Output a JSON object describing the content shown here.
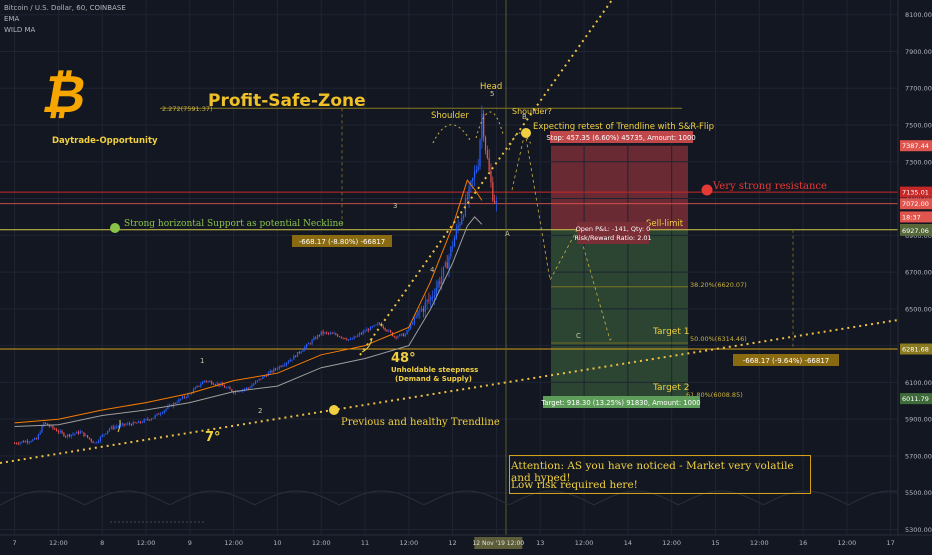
{
  "header": {
    "symbol_line": "Bitcoin / U.S. Dollar, 60, COINBASE",
    "indicator_1": "EMA",
    "indicator_2": "WILD MA"
  },
  "colors": {
    "background": "#131722",
    "candle_up": "#2962ff",
    "candle_down": "#ef5350",
    "annotation": "#f0d040",
    "stop_zone": "#7a2e36",
    "target_zone": "#2f4a34",
    "resistance": "#e53935",
    "support": "#8bc34a"
  },
  "icons": [
    "bitcoin-logo-icon"
  ],
  "chart_data": {
    "type": "candlestick",
    "symbol": "Bitcoin / U.S. Dollar, 60, COINBASE",
    "ylim": [
      5270,
      8180
    ],
    "y_ticks": [
      8100,
      7900,
      7700,
      7500,
      7300,
      7100,
      6900,
      6700,
      6500,
      6300,
      6100,
      5900,
      5700,
      5500,
      5300
    ],
    "y_tick_labels": [
      "8100.00",
      "7900.00",
      "7700.00",
      "7500.00",
      "7300.00",
      "7100.00",
      "6900.00",
      "6700.00",
      "6500.00",
      "6300.00",
      "6100.00",
      "5900.00",
      "5700.00",
      "5500.00",
      "5300.00"
    ],
    "x_tick_labels": [
      "7",
      "12:00",
      "8",
      "12:00",
      "9",
      "12:00",
      "10",
      "12:00",
      "11",
      "12:00",
      "12",
      "12:00",
      "13",
      "12:00",
      "14",
      "12:00",
      "15",
      "12:00",
      "16",
      "12:00",
      "17"
    ],
    "x_tick_slots": [
      0,
      12,
      24,
      36,
      48,
      60,
      72,
      84,
      96,
      108,
      120,
      132,
      144,
      156,
      168,
      180,
      192,
      204,
      216,
      228,
      240
    ],
    "slot_range": [
      -4,
      242
    ],
    "x_highlight_label": "12 Nov '19  12:00",
    "price_labels": [
      {
        "value": 7387.44,
        "text": "7387.44",
        "color": "#e0564f"
      },
      {
        "value": 7135.01,
        "text": "7135.01",
        "color": "#c62828"
      },
      {
        "value": 7072.0,
        "text": "7072.00",
        "color": "#e0564f"
      },
      {
        "value": 7000,
        "text": "18:37",
        "color": "#e0564f"
      },
      {
        "value": 6930.09,
        "text": "6930.09",
        "color": "#8a8f3c"
      },
      {
        "value": 6927.06,
        "text": "6927.06",
        "color": "#55683a"
      },
      {
        "value": 6281.68,
        "text": "6281.68",
        "color": "#8a7a20"
      },
      {
        "value": 6011.79,
        "text": "6011.79",
        "color": "#3f6b3a"
      }
    ],
    "series": [
      {
        "name": "EMA",
        "color": "#9e9e9e",
        "points": [
          [
            0,
            5860
          ],
          [
            12,
            5870
          ],
          [
            24,
            5920
          ],
          [
            36,
            5950
          ],
          [
            48,
            5990
          ],
          [
            60,
            6050
          ],
          [
            72,
            6080
          ],
          [
            84,
            6180
          ],
          [
            96,
            6230
          ],
          [
            108,
            6300
          ],
          [
            114,
            6500
          ],
          [
            120,
            6750
          ],
          [
            124,
            6950
          ],
          [
            126,
            7000
          ],
          [
            128,
            6960
          ]
        ]
      },
      {
        "name": "WILD MA",
        "color": "#f57c00",
        "points": [
          [
            0,
            5880
          ],
          [
            12,
            5900
          ],
          [
            24,
            5950
          ],
          [
            36,
            5990
          ],
          [
            48,
            6040
          ],
          [
            60,
            6110
          ],
          [
            72,
            6150
          ],
          [
            84,
            6250
          ],
          [
            96,
            6300
          ],
          [
            108,
            6400
          ],
          [
            114,
            6650
          ],
          [
            120,
            6950
          ],
          [
            124,
            7200
          ],
          [
            126,
            7150
          ],
          [
            128,
            7090
          ]
        ]
      }
    ],
    "levels": {
      "fib_2272": {
        "value": 7591.37,
        "label": "2.272(7591.37)"
      },
      "resistance": {
        "value": 7135.01,
        "label": "Very strong resistance"
      },
      "neckline": {
        "value": 6930.09,
        "label": "Strong horizontal Support as potential Neckline"
      },
      "fib_382": {
        "value": 6620.07,
        "label": "38.20%(6620.07)"
      },
      "fib_500": {
        "value": 6314.46,
        "label": "50.00%(6314.46)"
      },
      "fib_618": {
        "value": 6008.85,
        "label": "61.80%(6008.85)"
      },
      "level_6281": {
        "value": 6281.68
      }
    },
    "position": {
      "stop_label": "Stop: 457.35 (6.60%) 45735, Amount: 1000",
      "open_label": "Open P&L: -141, Qty: 0",
      "rr_label": "Risk/Reward Ratio: 2.01",
      "target_label": "Target: 918.30 (13.25%) 91830, Amount: 1000",
      "stop_level": 7387.44,
      "entry_level": 6930.09,
      "target_level": 6011.79
    },
    "measures": [
      {
        "text": "-668.17 (-8.80%) -66817"
      },
      {
        "text": "-668.17 (-9.64%) -66817"
      }
    ],
    "annotations": {
      "profit_zone": "Profit-Safe-Zone",
      "daytrade": "Daytrade-Opportunity",
      "head": "Head",
      "shoulder": "Shoulder",
      "shoulder_q": "Shoulder?",
      "retest": "Expecting retest of Trendline with S&R-Flip",
      "sell_limit": "Sell-limit",
      "target1": "Target 1",
      "target2": "Target 2",
      "angle_48": "48°",
      "steep_1": "Unholdable steepness",
      "steep_2": "(Demand & Supply)",
      "angle_7": "7°",
      "trendline": "Previous and healthy Trendline",
      "wave_labels": [
        "1",
        "2",
        "3",
        "4",
        "5",
        "B",
        "A",
        "C"
      ],
      "attention_1": "Attention: AS you have noticed - Market very volatile and hyped!",
      "attention_2": "Low risk required here!"
    },
    "candle_anchors": [
      [
        0,
        5770
      ],
      [
        6,
        5790
      ],
      [
        8,
        5880
      ],
      [
        14,
        5810
      ],
      [
        18,
        5830
      ],
      [
        22,
        5770
      ],
      [
        26,
        5850
      ],
      [
        30,
        5870
      ],
      [
        34,
        5880
      ],
      [
        38,
        5910
      ],
      [
        44,
        5990
      ],
      [
        48,
        6040
      ],
      [
        52,
        6110
      ],
      [
        56,
        6090
      ],
      [
        60,
        6050
      ],
      [
        64,
        6070
      ],
      [
        68,
        6130
      ],
      [
        72,
        6180
      ],
      [
        76,
        6230
      ],
      [
        80,
        6300
      ],
      [
        84,
        6370
      ],
      [
        88,
        6360
      ],
      [
        92,
        6330
      ],
      [
        96,
        6380
      ],
      [
        100,
        6420
      ],
      [
        104,
        6350
      ],
      [
        107,
        6360
      ],
      [
        110,
        6460
      ],
      [
        114,
        6560
      ],
      [
        118,
        6720
      ],
      [
        121,
        6920
      ],
      [
        124,
        7100
      ],
      [
        127,
        7300
      ],
      [
        128,
        7560
      ],
      [
        129,
        7380
      ],
      [
        130,
        7240
      ],
      [
        131,
        7120
      ],
      [
        132,
        7070
      ]
    ]
  }
}
